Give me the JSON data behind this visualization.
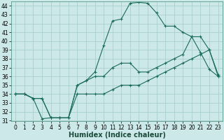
{
  "xlabel": "Humidex (Indice chaleur)",
  "bg_color": "#cce8e8",
  "grid_color": "#aacece",
  "line_color": "#1a6b5a",
  "hours": [
    0,
    1,
    2,
    3,
    4,
    5,
    6,
    7,
    8,
    9,
    10,
    11,
    12,
    13,
    14,
    15,
    16,
    17,
    18,
    19,
    20,
    21,
    22,
    23
  ],
  "line_peak": [
    34,
    34,
    33.5,
    31.2,
    31.3,
    31.3,
    31.3,
    35,
    35.5,
    36.5,
    39.5,
    42.3,
    42.5,
    44.3,
    44.4,
    44.3,
    43.2,
    41.7,
    41.7,
    41,
    40.5,
    38.7,
    36.8,
    36
  ],
  "line_mid": [
    34,
    34,
    33.5,
    33.5,
    31.3,
    31.3,
    31.3,
    35,
    35.5,
    36,
    36,
    37,
    37.5,
    37.5,
    36.5,
    36.5,
    37,
    37.5,
    38,
    38.5,
    40.5,
    40.5,
    39,
    36
  ],
  "line_low": [
    34,
    34,
    33.5,
    33.5,
    31.3,
    31.3,
    31.3,
    34,
    34,
    34,
    34,
    34.5,
    35,
    35,
    35,
    35.5,
    36,
    36.5,
    37,
    37.5,
    38,
    38.5,
    39,
    36.2
  ],
  "ylim_min": 31,
  "ylim_max": 44.5,
  "yticks": [
    31,
    32,
    33,
    34,
    35,
    36,
    37,
    38,
    39,
    40,
    41,
    42,
    43,
    44
  ],
  "xlim_min": -0.5,
  "xlim_max": 23.5,
  "tick_fontsize": 5.5,
  "label_fontsize": 7
}
